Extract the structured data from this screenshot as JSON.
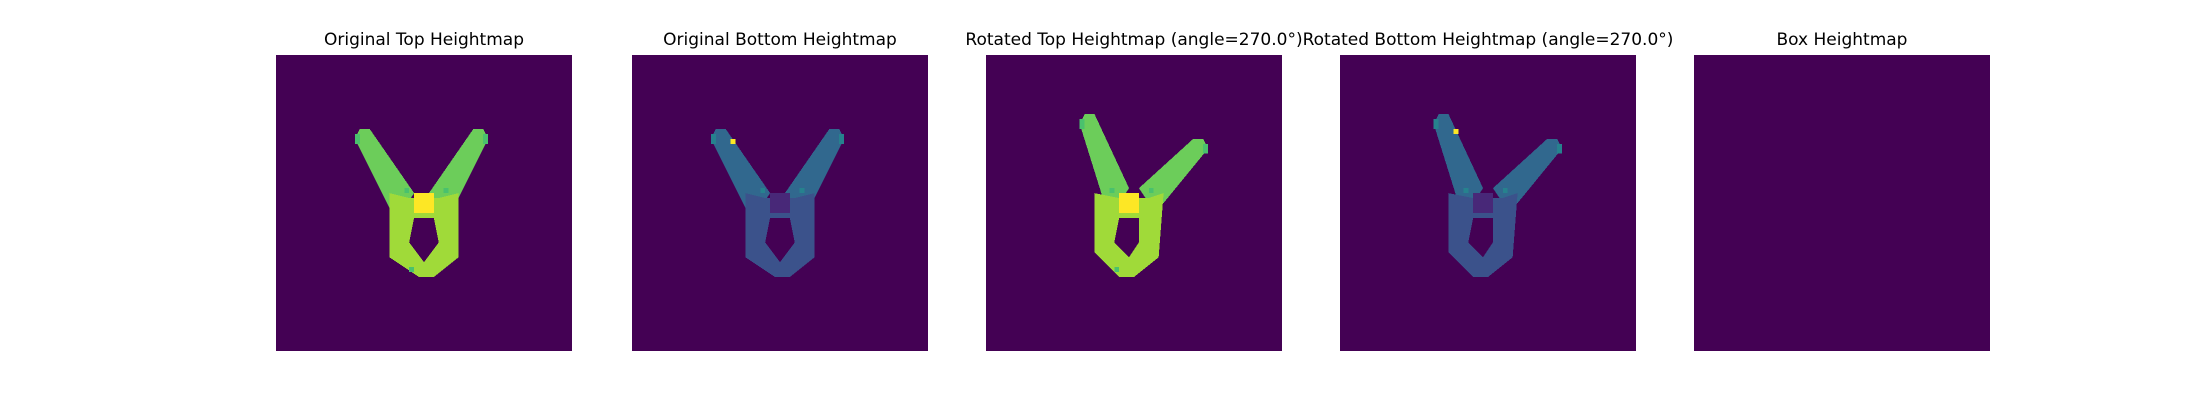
{
  "figure": {
    "background": "#ffffff"
  },
  "chart_data": [
    {
      "type": "heatmap",
      "title": "Original Top Heightmap",
      "background_value_color": "#440154",
      "grid": false,
      "axes_visible": false,
      "shape": "twin-arm (Y) silhouette",
      "colors": {
        "body": "#a0da39",
        "arms": "#6ccd5a",
        "edges": "#4ac16d",
        "core": "#fde725"
      }
    },
    {
      "type": "heatmap",
      "title": "Original Bottom Heightmap",
      "background_value_color": "#440154",
      "grid": false,
      "axes_visible": false,
      "shape": "twin-arm (Y) silhouette",
      "colors": {
        "body": "#3b528b",
        "arms": "#31688e",
        "edges": "#26828e",
        "core": "#482878",
        "spot": "#fde725"
      }
    },
    {
      "type": "heatmap",
      "title": "Rotated Top Heightmap (angle=270.0°)",
      "background_value_color": "#440154",
      "grid": false,
      "axes_visible": false,
      "shape": "twin-arm (Y) silhouette",
      "colors": {
        "body": "#a0da39",
        "arms": "#6ccd5a",
        "edges": "#4ac16d",
        "core": "#fde725"
      }
    },
    {
      "type": "heatmap",
      "title": "Rotated Bottom Heightmap (angle=270.0°)",
      "background_value_color": "#440154",
      "grid": false,
      "axes_visible": false,
      "shape": "twin-arm (Y) silhouette",
      "colors": {
        "body": "#3b528b",
        "arms": "#31688e",
        "edges": "#26828e",
        "core": "#482878",
        "spot": "#fde725"
      }
    },
    {
      "type": "heatmap",
      "title": "Box Heightmap",
      "background_value_color": "#440154",
      "grid": false,
      "axes_visible": false
    }
  ]
}
